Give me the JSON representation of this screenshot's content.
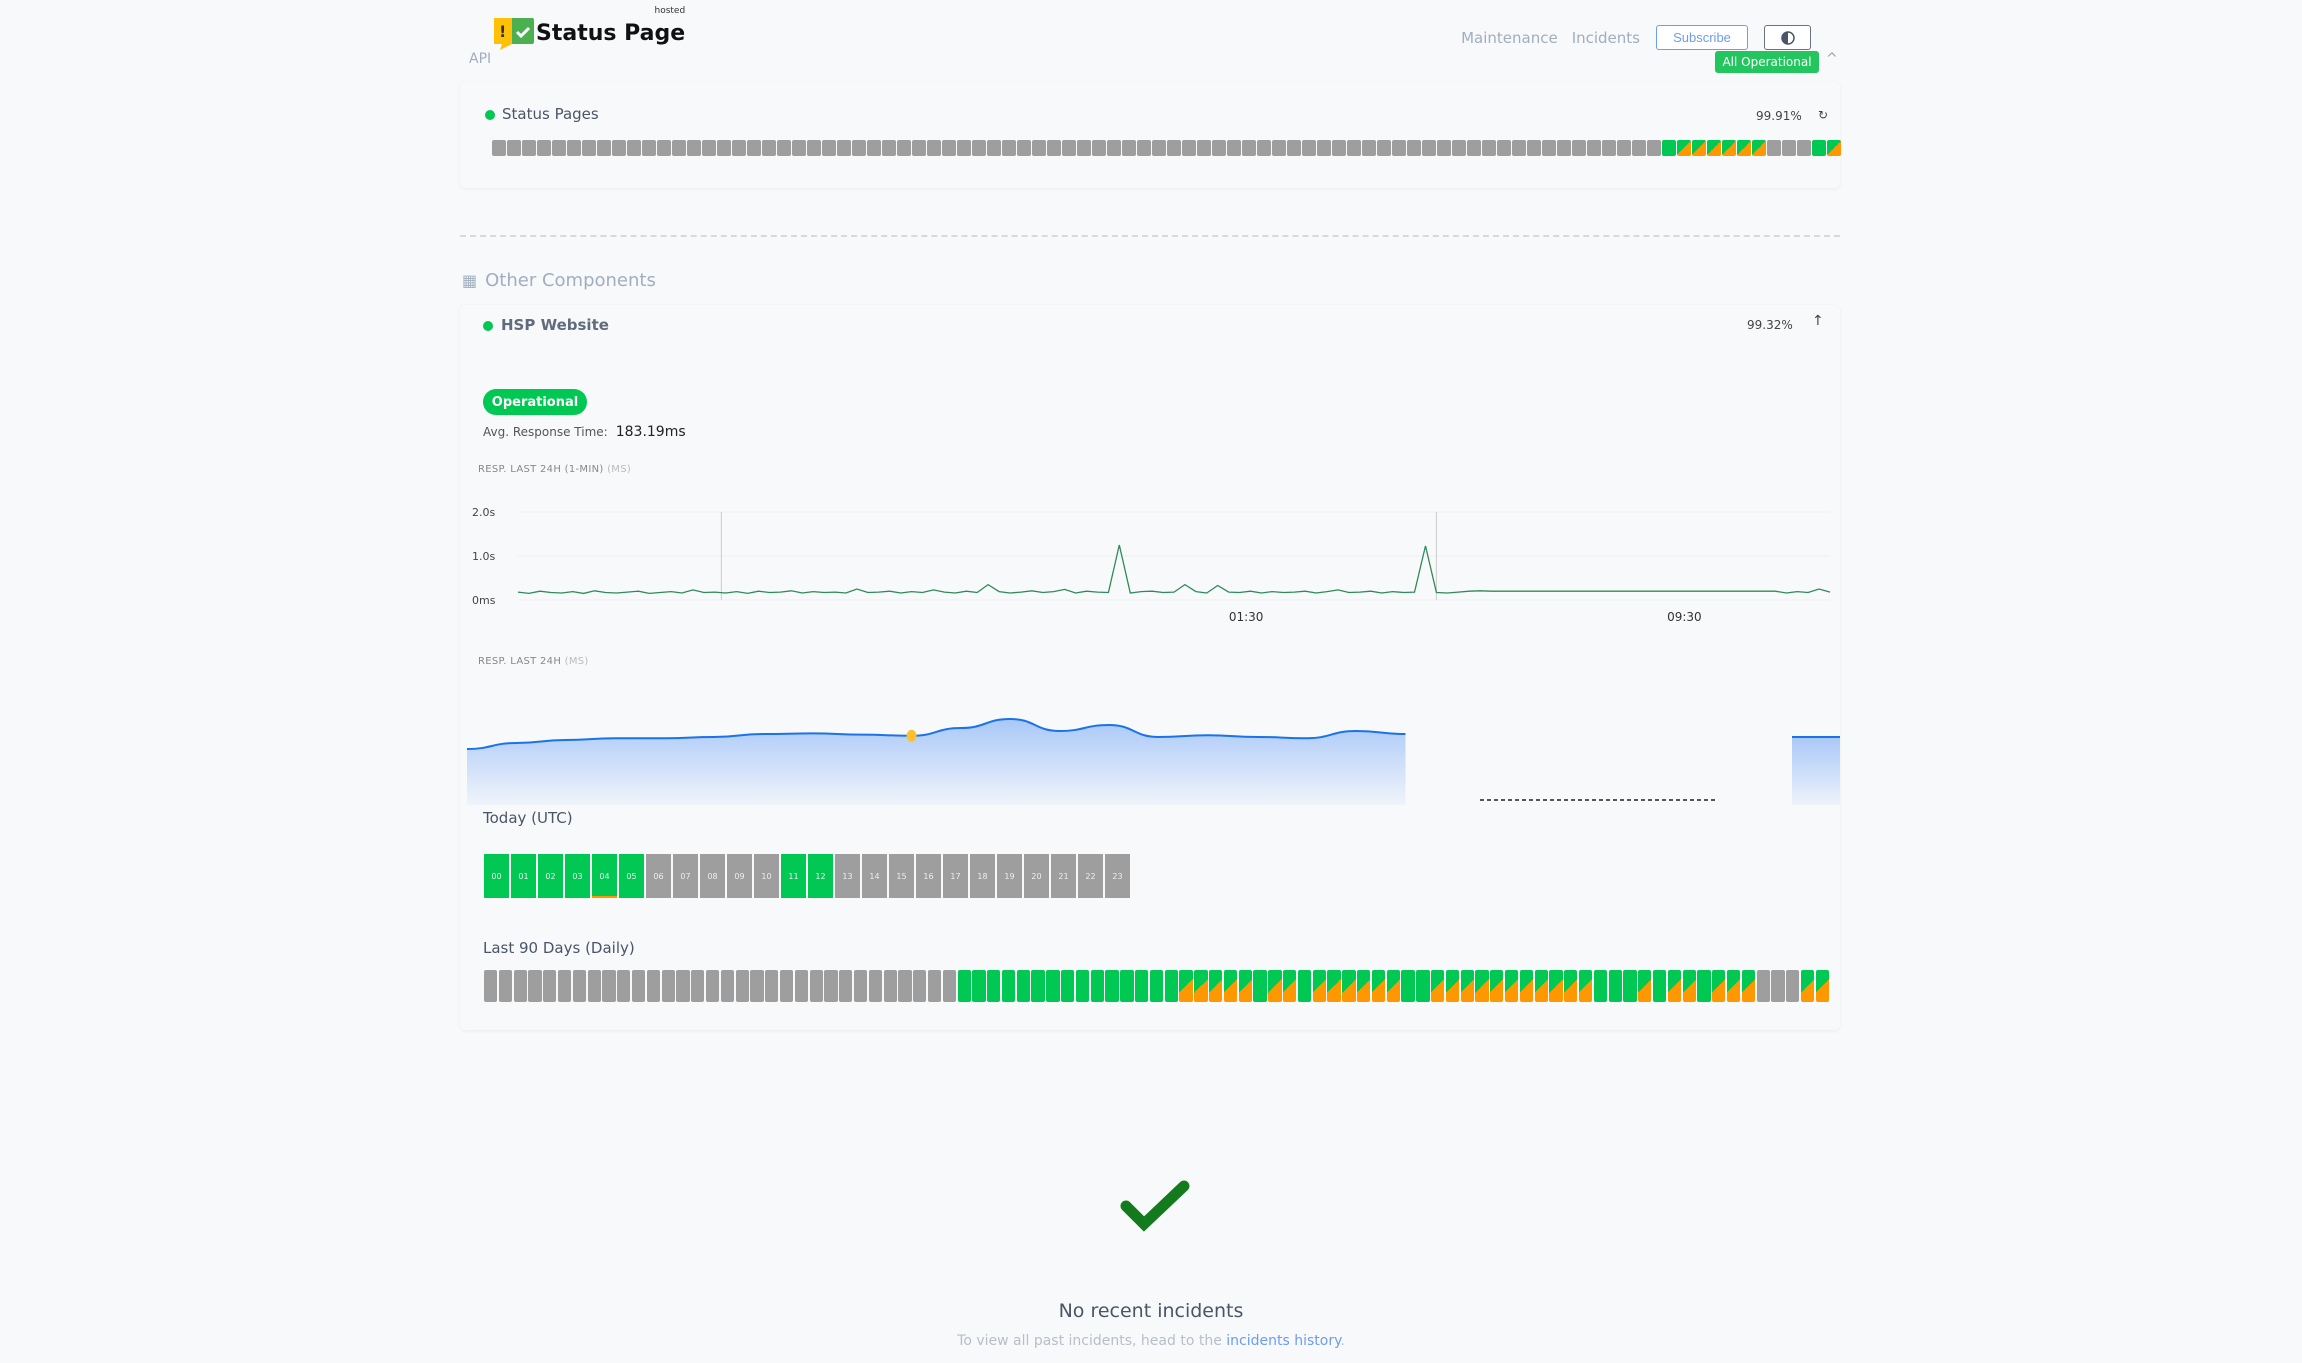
{
  "header": {
    "brand": "Status Page",
    "brand_tag": "hosted",
    "group": "API",
    "nav": [
      "Maintenance",
      "Incidents"
    ],
    "subscribe_label": "Subscribe",
    "theme_icon": "half-circle-icon",
    "overall_status": "All Operational"
  },
  "colors": {
    "operational": "#00c853",
    "degraded": "#ff9800",
    "no_data": "#9e9e9e",
    "accent": "#6b9df0",
    "badge": "#22c55e"
  },
  "status_pages": {
    "name": "Status Pages",
    "uptime": "99.91%",
    "days": "gggggggggggggggggggggggggggggggggggggggggggggggggggggggggggggggggggggggggggggggggggggggggg"
  },
  "other": {
    "title": "Other Components",
    "hsp": {
      "name": "HSP Website",
      "uptime": "99.32%",
      "status": "Operational",
      "avg_label": "Avg. Response Time:",
      "avg_value": "183.19ms",
      "chart1_label": "RESP. LAST 24H (1-MIN)",
      "chart1_unit": "(MS)",
      "chart2_label": "RESP. LAST 24H",
      "chart2_unit": "(MS)",
      "today_label": "Today (UTC)",
      "today": [
        {
          "h": "00",
          "s": "g"
        },
        {
          "h": "01",
          "s": "g"
        },
        {
          "h": "02",
          "s": "g"
        },
        {
          "h": "03",
          "s": "g"
        },
        {
          "h": "04",
          "s": "g",
          "warn": true
        },
        {
          "h": "05",
          "s": "g"
        },
        {
          "h": "06",
          "s": "n"
        },
        {
          "h": "07",
          "s": "n"
        },
        {
          "h": "08",
          "s": "n"
        },
        {
          "h": "09",
          "s": "n"
        },
        {
          "h": "10",
          "s": "n"
        },
        {
          "h": "11",
          "s": "g"
        },
        {
          "h": "12",
          "s": "g"
        },
        {
          "h": "13",
          "s": "n"
        },
        {
          "h": "14",
          "s": "n"
        },
        {
          "h": "15",
          "s": "n"
        },
        {
          "h": "16",
          "s": "n"
        },
        {
          "h": "17",
          "s": "n"
        },
        {
          "h": "18",
          "s": "n"
        },
        {
          "h": "19",
          "s": "n"
        },
        {
          "h": "20",
          "s": "n"
        },
        {
          "h": "21",
          "s": "n"
        },
        {
          "h": "22",
          "s": "n"
        },
        {
          "h": "23",
          "s": "n"
        }
      ],
      "days_label": "Last 90 Days (Daily)",
      "days": "nnnnnnnnnnnnnnnnnnnnnnnnnnnnnnnngggggggggggggggsssssgssgssssssggsssssssssssgggsgssgsssnnnss"
    }
  },
  "chart_data": [
    {
      "type": "line",
      "title": "RESP. LAST 24H (1-MIN) (MS)",
      "yticks": [
        "0ms",
        "1.0s",
        "2.0s"
      ],
      "ylim": [
        0,
        2000
      ],
      "xticks": [
        "01:30",
        "09:30"
      ],
      "color": "#2e8b57",
      "values": [
        180,
        150,
        200,
        170,
        160,
        190,
        150,
        210,
        170,
        160,
        180,
        200,
        150,
        170,
        190,
        160,
        230,
        170,
        180,
        160,
        190,
        150,
        200,
        170,
        180,
        210,
        160,
        190,
        170,
        180,
        160,
        250,
        170,
        180,
        200,
        160,
        190,
        170,
        230,
        180,
        160,
        200,
        170,
        350,
        190,
        160,
        180,
        210,
        170,
        190,
        240,
        160,
        200,
        180,
        170,
        1250,
        160,
        190,
        200,
        170,
        180,
        350,
        190,
        160,
        330,
        180,
        170,
        200,
        160,
        190,
        170,
        180,
        200,
        160,
        190,
        230,
        170,
        180,
        200,
        160,
        190,
        170,
        180,
        1230,
        170,
        160,
        180,
        200,
        210,
        200,
        200,
        200,
        200,
        200,
        200,
        200,
        200,
        200,
        200,
        200,
        200,
        200,
        200,
        200,
        200,
        200,
        200,
        200,
        200,
        200,
        200,
        200,
        200,
        200,
        200,
        200,
        160,
        190,
        170,
        250,
        180
      ]
    },
    {
      "type": "area",
      "title": "RESP. LAST 24H (MS)",
      "color": "#1a73e8",
      "values": [
        160,
        170,
        175,
        178,
        178,
        180,
        185,
        186,
        184,
        182,
        195,
        210,
        190,
        200,
        180,
        183,
        180,
        178,
        190,
        185,
        null,
        null,
        null,
        null,
        null,
        null,
        null,
        null,
        180
      ]
    }
  ],
  "incidents": {
    "title": "No recent incidents",
    "text": "To view all past incidents, head to the",
    "link": "incidents history",
    "after": "."
  }
}
